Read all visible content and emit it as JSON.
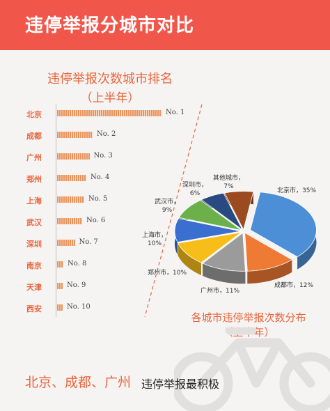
{
  "header": {
    "title": "违停举报分城市对比"
  },
  "ranking": {
    "title": "违停举报次数城市排名",
    "subtitle": "（上半年）",
    "items": [
      {
        "city": "北京",
        "rank": "No. 1",
        "value": 100
      },
      {
        "city": "成都",
        "rank": "No. 2",
        "value": 34
      },
      {
        "city": "广州",
        "rank": "No. 3",
        "value": 31
      },
      {
        "city": "郑州",
        "rank": "No. 4",
        "value": 28
      },
      {
        "city": "上海",
        "rank": "No. 5",
        "value": 26
      },
      {
        "city": "武汉",
        "rank": "No. 6",
        "value": 24
      },
      {
        "city": "深圳",
        "rank": "No. 7",
        "value": 17
      },
      {
        "city": "南京",
        "rank": "No. 8",
        "value": 6
      },
      {
        "city": "天津",
        "rank": "No. 9",
        "value": 5
      },
      {
        "city": "西安",
        "rank": "No. 10",
        "value": 4
      }
    ]
  },
  "chart_data": [
    {
      "type": "bar",
      "title": "违停举报次数城市排名（上半年）",
      "categories": [
        "北京",
        "成都",
        "广州",
        "郑州",
        "上海",
        "武汉",
        "深圳",
        "南京",
        "天津",
        "西安"
      ],
      "values": [
        100,
        34,
        31,
        28,
        26,
        24,
        17,
        6,
        5,
        4
      ],
      "data_labels": [
        "No. 1",
        "No. 2",
        "No. 3",
        "No. 4",
        "No. 5",
        "No. 6",
        "No. 7",
        "No. 8",
        "No. 9",
        "No. 10"
      ],
      "orientation": "horizontal"
    },
    {
      "type": "pie",
      "title": "各城市违停举报次数分布（上半年）",
      "slices": [
        {
          "label": "北京市",
          "value": 35,
          "pct": "35%",
          "color": "#4d8fd6"
        },
        {
          "label": "成都市",
          "value": 12,
          "pct": "12%",
          "color": "#ef7a34"
        },
        {
          "label": "广州市",
          "value": 11,
          "pct": "11%",
          "color": "#9b9b9b"
        },
        {
          "label": "郑州市",
          "value": 10,
          "pct": "10%",
          "color": "#f7be1a"
        },
        {
          "label": "上海市",
          "value": 10,
          "pct": "10%",
          "color": "#3b6fcf"
        },
        {
          "label": "武汉市",
          "value": 9,
          "pct": "9%",
          "color": "#6bb04a"
        },
        {
          "label": "深圳市",
          "value": 6,
          "pct": "6%",
          "color": "#294a80"
        },
        {
          "label": "其他城市",
          "value": 7,
          "pct": "7%",
          "color": "#9c4a1f"
        }
      ]
    }
  ],
  "pie": {
    "title": "各城市违停举报次数分布",
    "subtitle": "（上半年）"
  },
  "footer": {
    "highlight": "北京、成都、广州",
    "text": "违停举报最积极"
  },
  "colors": {
    "header": "#f1564a",
    "accent": "#e9643a"
  }
}
